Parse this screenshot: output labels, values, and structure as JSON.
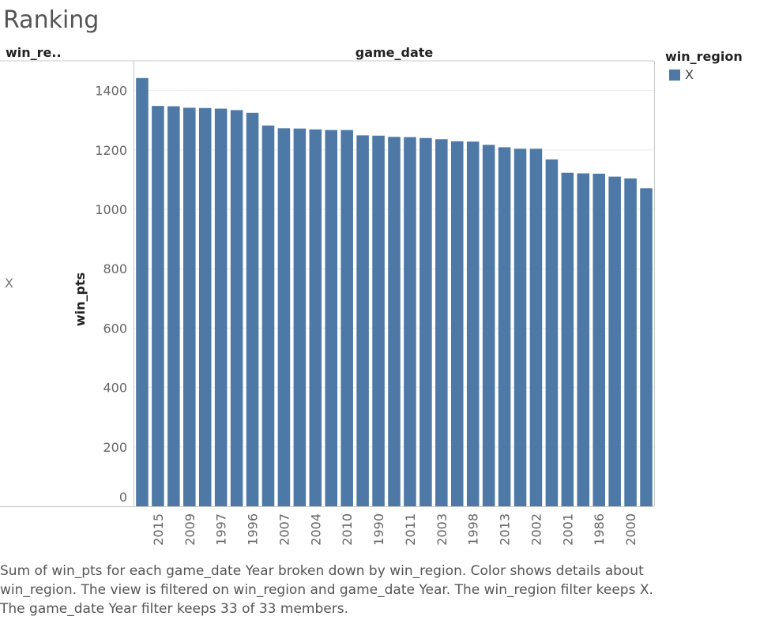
{
  "title": "Ranking",
  "row_header": "win_re..",
  "column_header": "game_date",
  "row_value": "X",
  "legend": {
    "title": "win_region",
    "items": [
      {
        "label": "X",
        "color": "#4e79a7"
      }
    ]
  },
  "caption": "Sum of win_pts for each game_date Year broken down by win_region.  Color shows details about win_region. The view is filtered on win_region and game_date Year. The win_region filter keeps X. The game_date Year filter keeps 33 of 33 members.",
  "chart_data": {
    "type": "bar",
    "ylabel": "win_pts",
    "xlabel": "",
    "ylim": [
      0,
      1500
    ],
    "yticks": [
      0,
      200,
      400,
      600,
      800,
      1000,
      1200,
      1400
    ],
    "grid": true,
    "bar_color": "#4e79a7",
    "categories": [
      "",
      "2015",
      "",
      "2009",
      "",
      "1997",
      "",
      "1996",
      "",
      "2007",
      "",
      "2004",
      "",
      "2010",
      "",
      "1990",
      "",
      "2011",
      "",
      "2003",
      "",
      "1998",
      "",
      "2013",
      "",
      "2002",
      "",
      "2001",
      "",
      "1986",
      "",
      "2000",
      ""
    ],
    "values": [
      1442,
      1348,
      1347,
      1342,
      1341,
      1339,
      1334,
      1325,
      1282,
      1273,
      1272,
      1269,
      1267,
      1267,
      1249,
      1248,
      1244,
      1243,
      1240,
      1236,
      1229,
      1228,
      1217,
      1209,
      1204,
      1204,
      1168,
      1123,
      1121,
      1120,
      1110,
      1104,
      1071
    ]
  }
}
